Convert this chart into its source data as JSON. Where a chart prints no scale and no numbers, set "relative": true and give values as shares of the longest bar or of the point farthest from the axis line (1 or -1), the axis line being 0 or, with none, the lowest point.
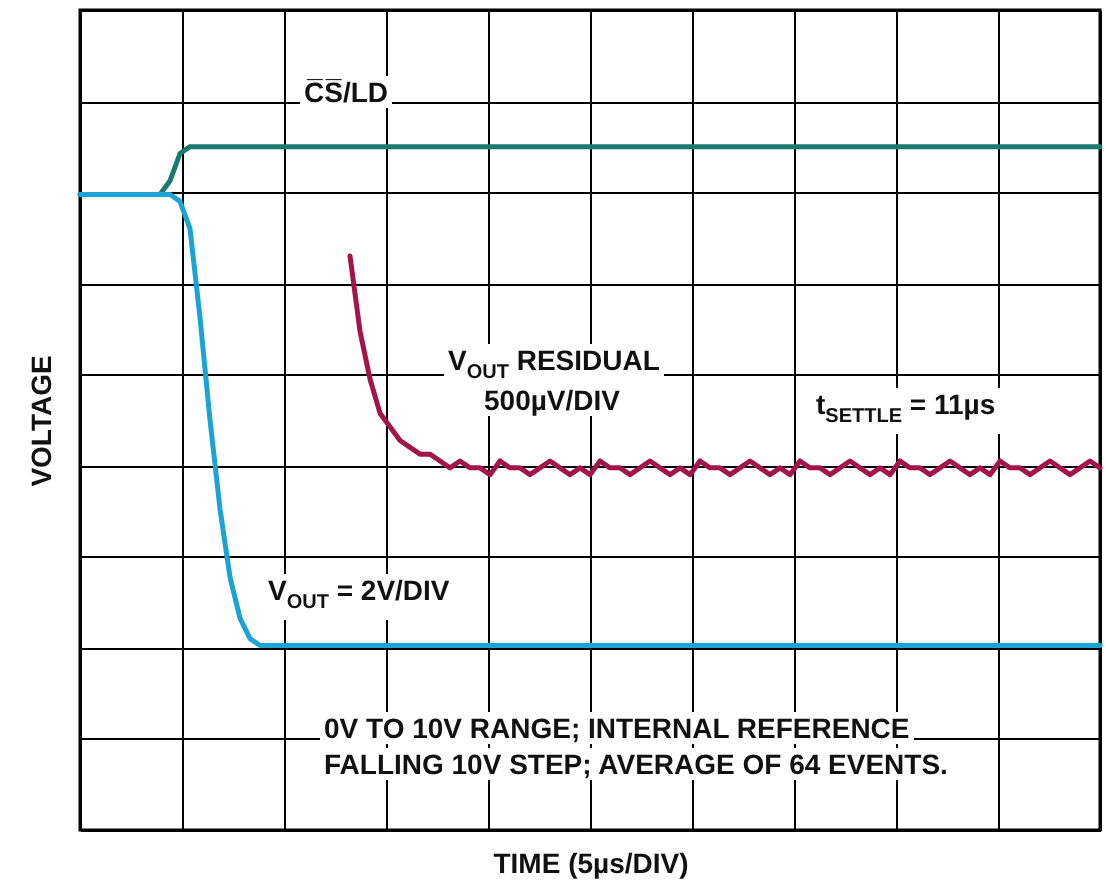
{
  "chart_data": {
    "type": "line",
    "relative": true,
    "xlabel": "TIME (5µs/DIV)",
    "ylabel": "VOLTAGE",
    "grid": true,
    "marker": "none",
    "line_style": "solid",
    "categories": [
      null,
      null,
      null,
      null,
      null,
      null,
      null,
      null,
      null,
      null,
      null,
      null,
      null,
      null,
      null,
      null,
      null,
      null,
      null,
      null,
      null,
      null,
      null,
      null,
      null,
      null,
      null,
      null,
      null,
      null,
      null,
      null,
      null,
      null,
      null,
      null,
      null,
      null,
      null,
      null,
      null,
      null,
      null,
      null,
      null,
      null,
      null,
      null,
      null,
      null,
      null,
      null,
      null,
      null,
      null,
      null,
      null,
      null,
      null,
      null,
      null,
      null,
      null,
      null,
      null,
      null,
      null,
      null,
      null,
      null,
      null,
      null,
      null,
      null,
      null,
      null,
      null,
      null,
      null,
      null,
      null,
      null,
      null,
      null,
      null,
      null,
      null,
      null,
      null,
      null,
      null,
      null,
      null,
      null,
      null,
      null,
      null,
      null,
      null,
      null,
      null,
      null,
      null
    ],
    "series": [
      {
        "name": "C̅S̅/LD",
        "color": "#1a7a6e",
        "values": [
          0.93,
          0.93,
          0.93,
          0.93,
          0.93,
          0.93,
          0.93,
          0.93,
          0.93,
          0.95,
          0.99,
          1,
          1,
          1,
          1,
          1,
          1,
          1,
          1,
          1,
          1,
          1,
          1,
          1,
          1,
          1,
          1,
          1,
          1,
          1,
          1,
          1,
          1,
          1,
          1,
          1,
          1,
          1,
          1,
          1,
          1,
          1,
          1,
          1,
          1,
          1,
          1,
          1,
          1,
          1,
          1,
          1,
          1,
          1,
          1,
          1,
          1,
          1,
          1,
          1,
          1,
          1,
          1,
          1,
          1,
          1,
          1,
          1,
          1,
          1,
          1,
          1,
          1,
          1,
          1,
          1,
          1,
          1,
          1,
          1,
          1,
          1,
          1,
          1,
          1,
          1,
          1,
          1,
          1,
          1,
          1,
          1,
          1,
          1,
          1,
          1,
          1,
          1,
          1,
          1,
          1,
          1,
          1
        ]
      },
      {
        "name": "V$_{OUT}$ = 2V/DIV",
        "color": "#1ba3d6",
        "values": [
          0.93,
          0.93,
          0.93,
          0.93,
          0.93,
          0.93,
          0.93,
          0.93,
          0.93,
          0.93,
          0.92,
          0.88,
          0.75,
          0.6,
          0.47,
          0.37,
          0.31,
          0.28,
          0.27,
          0.27,
          0.27,
          0.27,
          0.27,
          0.27,
          0.27,
          0.27,
          0.27,
          0.27,
          0.27,
          0.27,
          0.27,
          0.27,
          0.27,
          0.27,
          0.27,
          0.27,
          0.27,
          0.27,
          0.27,
          0.27,
          0.27,
          0.27,
          0.27,
          0.27,
          0.27,
          0.27,
          0.27,
          0.27,
          0.27,
          0.27,
          0.27,
          0.27,
          0.27,
          0.27,
          0.27,
          0.27,
          0.27,
          0.27,
          0.27,
          0.27,
          0.27,
          0.27,
          0.27,
          0.27,
          0.27,
          0.27,
          0.27,
          0.27,
          0.27,
          0.27,
          0.27,
          0.27,
          0.27,
          0.27,
          0.27,
          0.27,
          0.27,
          0.27,
          0.27,
          0.27,
          0.27,
          0.27,
          0.27,
          0.27,
          0.27,
          0.27,
          0.27,
          0.27,
          0.27,
          0.27,
          0.27,
          0.27,
          0.27,
          0.27,
          0.27,
          0.27,
          0.27,
          0.27,
          0.27,
          0.27,
          0.27,
          0.27,
          0.27
        ]
      },
      {
        "name": "V$_{OUT}$ RESIDUAL",
        "color": "#a3154a",
        "values": [
          null,
          null,
          null,
          null,
          null,
          null,
          null,
          null,
          null,
          null,
          null,
          null,
          null,
          null,
          null,
          null,
          null,
          null,
          null,
          null,
          null,
          null,
          null,
          null,
          null,
          null,
          null,
          0.84,
          0.73,
          0.66,
          0.61,
          0.59,
          0.57,
          0.56,
          0.55,
          0.55,
          0.54,
          0.53,
          0.54,
          0.53,
          0.53,
          0.52,
          0.54,
          0.53,
          0.53,
          0.52,
          0.53,
          0.54,
          0.53,
          0.52,
          0.53,
          0.52,
          0.54,
          0.53,
          0.53,
          0.52,
          0.53,
          0.54,
          0.53,
          0.52,
          0.53,
          0.52,
          0.54,
          0.53,
          0.53,
          0.52,
          0.53,
          0.54,
          0.53,
          0.52,
          0.53,
          0.52,
          0.54,
          0.53,
          0.53,
          0.52,
          0.53,
          0.54,
          0.53,
          0.52,
          0.53,
          0.52,
          0.54,
          0.53,
          0.53,
          0.52,
          0.53,
          0.54,
          0.53,
          0.52,
          0.53,
          0.52,
          0.54,
          0.53,
          0.53,
          0.52,
          0.53,
          0.54,
          0.53,
          0.52,
          0.53,
          0.54,
          0.53
        ]
      }
    ],
    "annotations": [
      "500µV/DIV",
      "t$_{SETTLE}$ = 11µs",
      "0V TO 10V RANGE; INTERNAL REFERENCE",
      "FALLING 10V STEP; AVERAGE OF 64 EVENTS."
    ]
  }
}
